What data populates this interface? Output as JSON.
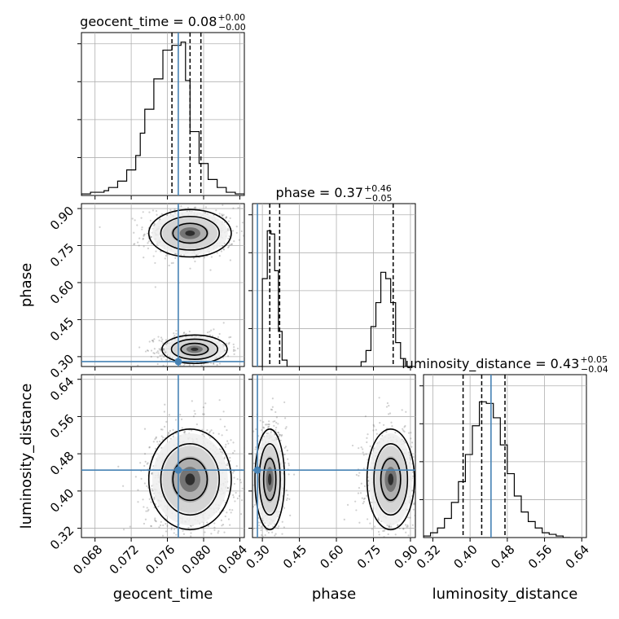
{
  "chart_data": {
    "type": "corner",
    "parameters": [
      "geocent_time",
      "phase",
      "luminosity_distance"
    ],
    "truth": {
      "geocent_time": 0.0772,
      "phase": 0.28,
      "luminosity_distance": 0.445
    },
    "titles": [
      {
        "param": "geocent_time",
        "label": "geocent_time = 0.08",
        "plus": "+0.00",
        "minus": "−0.00"
      },
      {
        "param": "phase",
        "label": "phase = 0.37",
        "plus": "+0.46",
        "minus": "−0.05"
      },
      {
        "param": "luminosity_distance",
        "label": "luminosity_distance = 0.43",
        "plus": "+0.05",
        "minus": "−0.04"
      }
    ],
    "axes": {
      "geocent_time": {
        "label": "geocent_time",
        "range": [
          0.0665,
          0.0845
        ],
        "ticks": [
          "0.068",
          "0.072",
          "0.076",
          "0.080",
          "0.084"
        ],
        "tick_values": [
          0.068,
          0.072,
          0.076,
          0.08,
          0.084
        ]
      },
      "phase": {
        "label": "phase",
        "range": [
          0.26,
          0.92
        ],
        "ticks": [
          "0.30",
          "0.45",
          "0.60",
          "0.75",
          "0.90"
        ],
        "tick_values": [
          0.3,
          0.45,
          0.6,
          0.75,
          0.9
        ]
      },
      "luminosity_distance": {
        "label": "luminosity_distance",
        "range": [
          0.3,
          0.65
        ],
        "ticks": [
          "0.32",
          "0.40",
          "0.48",
          "0.56",
          "0.64"
        ],
        "tick_values": [
          0.32,
          0.4,
          0.48,
          0.56,
          0.64
        ]
      }
    },
    "marginals": {
      "geocent_time": {
        "quantiles": [
          0.0765,
          0.0785,
          0.0797
        ],
        "bin_edges": [
          0.0665,
          0.0675,
          0.0685,
          0.069,
          0.0695,
          0.0705,
          0.0715,
          0.0725,
          0.073,
          0.0735,
          0.0745,
          0.0755,
          0.0765,
          0.0775,
          0.078,
          0.0785,
          0.0795,
          0.0805,
          0.0815,
          0.0825,
          0.0835,
          0.0845
        ],
        "counts": [
          0.01,
          0.02,
          0.02,
          0.03,
          0.05,
          0.09,
          0.16,
          0.25,
          0.39,
          0.54,
          0.73,
          0.91,
          0.94,
          0.96,
          0.72,
          0.4,
          0.2,
          0.1,
          0.05,
          0.02,
          0.01
        ]
      },
      "phase": {
        "quantiles": [
          0.33,
          0.37,
          0.83
        ],
        "bin_edges": [
          0.26,
          0.3,
          0.32,
          0.335,
          0.35,
          0.365,
          0.38,
          0.4,
          0.7,
          0.72,
          0.74,
          0.76,
          0.78,
          0.8,
          0.82,
          0.84,
          0.86,
          0.88,
          0.92
        ],
        "counts": [
          0.0,
          0.55,
          0.85,
          0.83,
          0.6,
          0.22,
          0.04,
          0.0,
          0.03,
          0.1,
          0.25,
          0.4,
          0.59,
          0.55,
          0.4,
          0.15,
          0.05,
          0.0
        ]
      },
      "luminosity_distance": {
        "quantiles": [
          0.385,
          0.425,
          0.475
        ],
        "bin_edges": [
          0.3,
          0.315,
          0.33,
          0.345,
          0.36,
          0.375,
          0.39,
          0.405,
          0.42,
          0.435,
          0.45,
          0.465,
          0.48,
          0.495,
          0.51,
          0.525,
          0.54,
          0.555,
          0.57,
          0.585,
          0.6,
          0.615
        ],
        "counts": [
          0.01,
          0.03,
          0.06,
          0.12,
          0.22,
          0.35,
          0.52,
          0.7,
          0.85,
          0.84,
          0.75,
          0.58,
          0.4,
          0.26,
          0.16,
          0.1,
          0.06,
          0.03,
          0.02,
          0.01,
          0.0
        ]
      }
    },
    "joint": [
      {
        "x": "geocent_time",
        "y": "phase",
        "modes": [
          {
            "cx": 0.0785,
            "cy": 0.8,
            "sx": 0.0019,
            "sy": 0.04,
            "n": 650
          },
          {
            "cx": 0.079,
            "cy": 0.33,
            "sx": 0.0015,
            "sy": 0.024,
            "n": 650
          }
        ]
      },
      {
        "x": "geocent_time",
        "y": "luminosity_distance",
        "modes": [
          {
            "cx": 0.0785,
            "cy": 0.425,
            "sx": 0.0019,
            "sy": 0.045,
            "n": 1100
          }
        ]
      },
      {
        "x": "phase",
        "y": "luminosity_distance",
        "modes": [
          {
            "cx": 0.33,
            "cy": 0.425,
            "sx": 0.025,
            "sy": 0.045,
            "n": 650
          },
          {
            "cx": 0.82,
            "cy": 0.425,
            "sx": 0.04,
            "sy": 0.045,
            "n": 650
          }
        ]
      }
    ]
  }
}
